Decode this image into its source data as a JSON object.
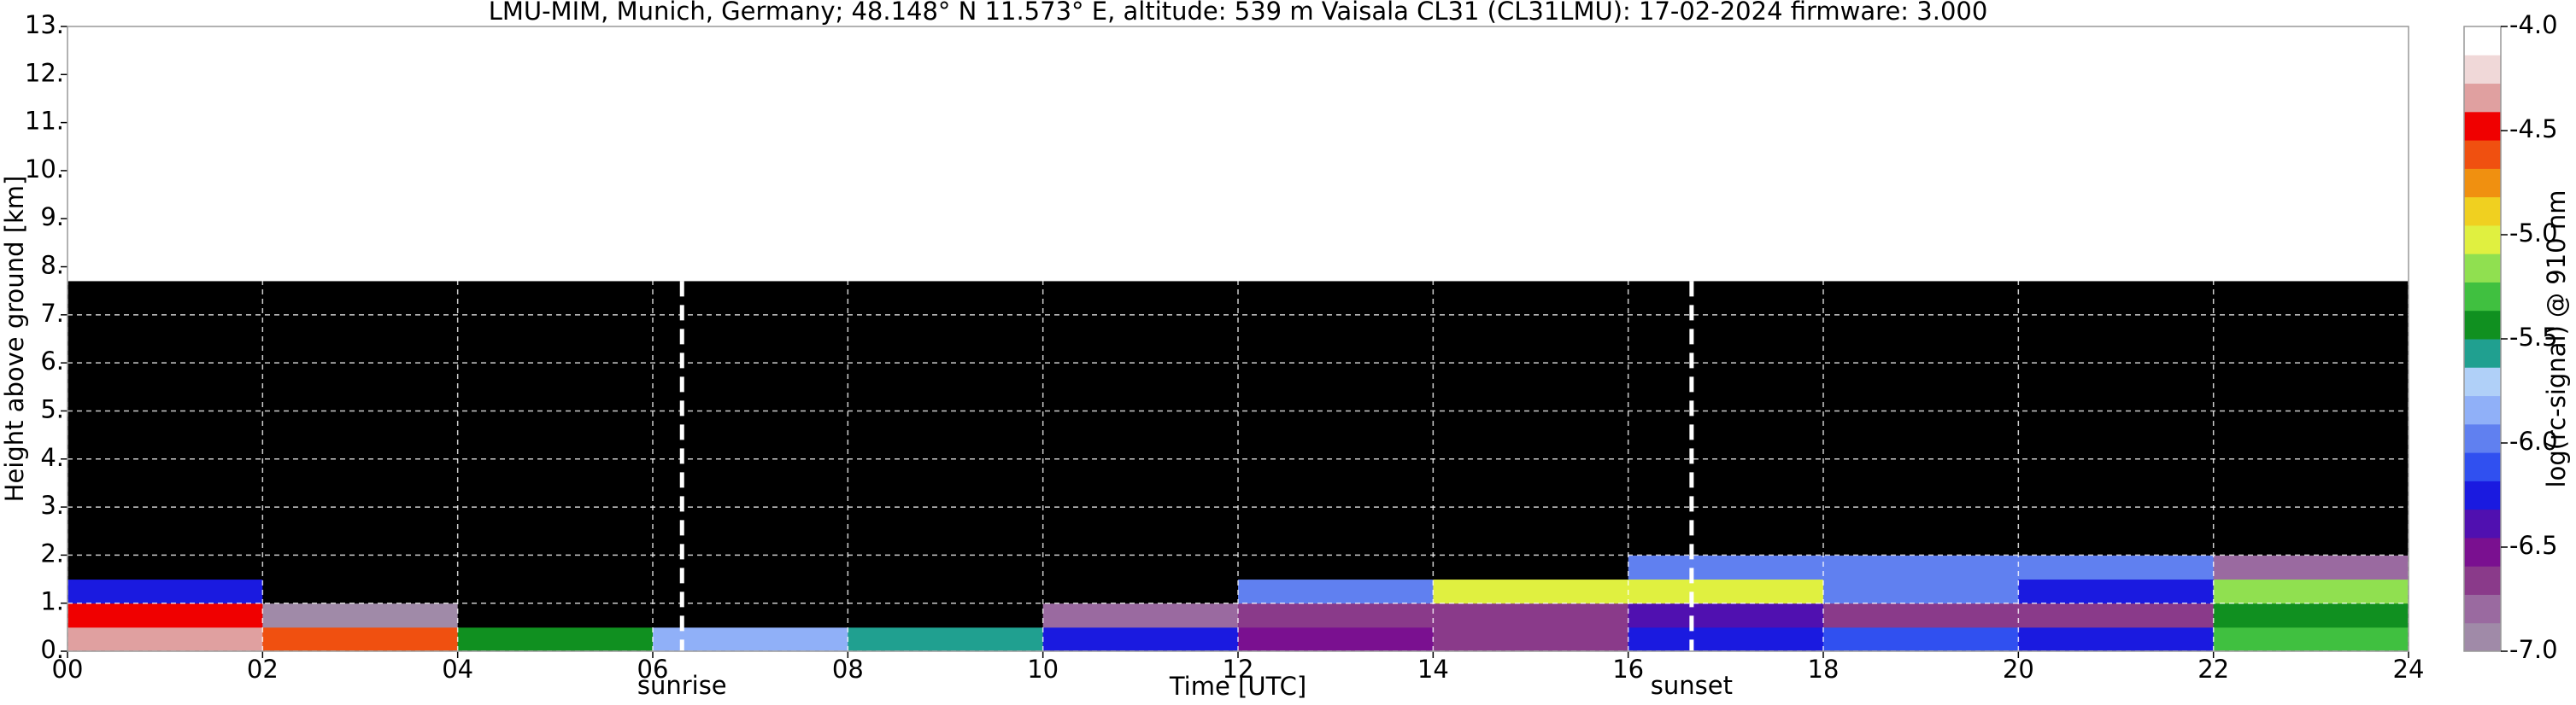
{
  "chart_data": {
    "type": "heatmap",
    "title": "LMU-MIM, Munich, Germany; 48.148° N 11.573° E, altitude: 539 m    Vaisala CL31 (CL31LMU): 17-02-2024    firmware: 3.000",
    "x_label": "Time [UTC]",
    "y_label": "Height above ground [km]",
    "colorbar_label": "log(rc-signal) @ 910 nm",
    "xlim": [
      0,
      24
    ],
    "ylim": [
      0,
      13
    ],
    "xticks": [
      {
        "value": 0,
        "label": "00"
      },
      {
        "value": 2,
        "label": "02"
      },
      {
        "value": 4,
        "label": "04"
      },
      {
        "value": 6,
        "label": "06"
      },
      {
        "value": 8,
        "label": "08"
      },
      {
        "value": 10,
        "label": "10"
      },
      {
        "value": 12,
        "label": "12"
      },
      {
        "value": 14,
        "label": "14"
      },
      {
        "value": 16,
        "label": "16"
      },
      {
        "value": 18,
        "label": "18"
      },
      {
        "value": 20,
        "label": "20"
      },
      {
        "value": 22,
        "label": "22"
      },
      {
        "value": 24,
        "label": "24"
      }
    ],
    "yticks": [
      {
        "value": 0,
        "label": "0."
      },
      {
        "value": 1,
        "label": "1."
      },
      {
        "value": 2,
        "label": "2."
      },
      {
        "value": 3,
        "label": "3."
      },
      {
        "value": 4,
        "label": "4."
      },
      {
        "value": 5,
        "label": "5."
      },
      {
        "value": 6,
        "label": "6."
      },
      {
        "value": 7,
        "label": "7."
      },
      {
        "value": 8,
        "label": "8."
      },
      {
        "value": 9,
        "label": "9."
      },
      {
        "value": 10,
        "label": "10."
      },
      {
        "value": 11,
        "label": "11."
      },
      {
        "value": 12,
        "label": "12."
      },
      {
        "value": 13,
        "label": "13."
      }
    ],
    "grid": true,
    "grid_color": "#ffffff",
    "x_edges": [
      0,
      2,
      4,
      6,
      8,
      10,
      12,
      14,
      16,
      18,
      20,
      22,
      24
    ],
    "y_edges": [
      0,
      0.5,
      1,
      1.5,
      2,
      3,
      5,
      7.7
    ],
    "z": [
      [
        -4.3,
        -4.6,
        -5.5,
        -5.8,
        -5.6,
        -6.3,
        -6.5,
        -6.6,
        -6.3,
        -6.1,
        -6.2,
        -5.3
      ],
      [
        -4.5,
        -6.9,
        -7.2,
        -7.2,
        -7.2,
        -6.8,
        -6.7,
        -6.6,
        -6.4,
        -6.6,
        -6.6,
        -5.5
      ],
      [
        -6.2,
        -7.2,
        -7.2,
        -7.2,
        -7.2,
        -7.2,
        -6.0,
        -5.0,
        -5.0,
        -6.0,
        -6.2,
        -5.2
      ],
      [
        -7.1,
        -7.2,
        -7.2,
        -7.2,
        -7.2,
        -7.1,
        -7.1,
        -7.1,
        -6.0,
        -6.0,
        -6.0,
        -6.8
      ],
      [
        -7.2,
        -7.2,
        -7.2,
        -7.2,
        -7.2,
        -7.1,
        -7.1,
        -7.2,
        -7.2,
        -7.2,
        -7.2,
        -7.2
      ],
      [
        -7.2,
        -7.2,
        -7.2,
        -7.2,
        -7.1,
        -7.1,
        -7.1,
        -7.1,
        -7.2,
        -7.2,
        -7.2,
        -7.2
      ],
      [
        -7.1,
        -7.1,
        -7.1,
        -7.1,
        -7.1,
        -7.05,
        -7.05,
        -7.05,
        -7.1,
        -7.1,
        -7.1,
        -7.1
      ]
    ],
    "clim": [
      -7,
      -4
    ],
    "cticks": [
      {
        "value": -7,
        "label": "-7.0"
      },
      -6.5,
      {
        "value": -6,
        "label": "-6.0"
      },
      -5.5,
      {
        "value": -5,
        "label": "-5.0"
      },
      -4.5,
      {
        "value": -4,
        "label": "-4.0"
      }
    ],
    "under_color": "#000000",
    "colormap": [
      "#a08aa8",
      "#9a6aa0",
      "#8a3a8a",
      "#7a1090",
      "#5010b0",
      "#1a1ae0",
      "#3050f0",
      "#6080f0",
      "#90b0f8",
      "#b0d0f8",
      "#20a090",
      "#109020",
      "#40c040",
      "#90e050",
      "#e0f040",
      "#f0d020",
      "#f09010",
      "#f05010",
      "#f00000",
      "#e0a0a0",
      "#f0d8d8",
      "#ffffff"
    ],
    "annotations": [
      {
        "x": 6.3,
        "label": "sunrise"
      },
      {
        "x": 16.65,
        "label": "sunset"
      }
    ]
  }
}
